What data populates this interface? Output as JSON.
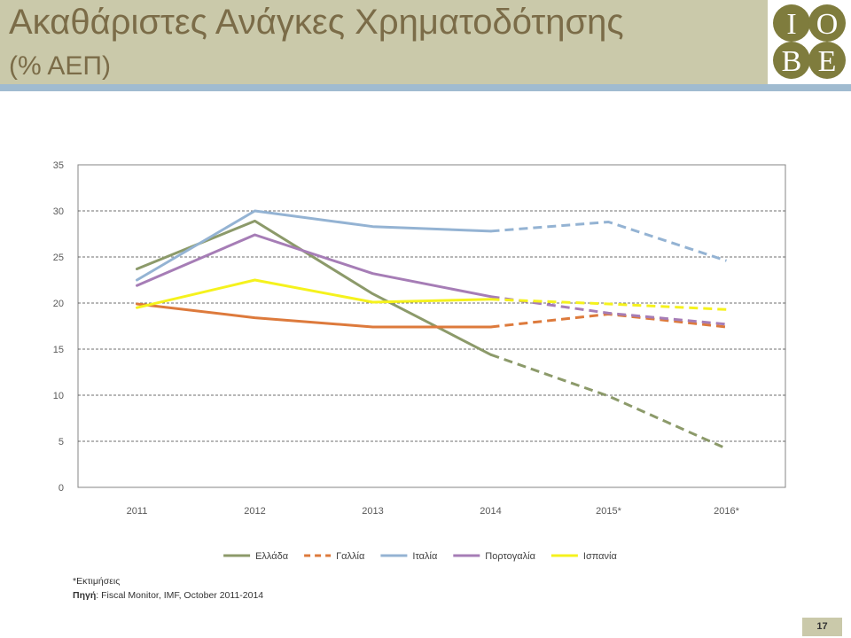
{
  "slide": {
    "title": "Ακαθάριστες Ανάγκες Χρηματοδότησης",
    "subtitle": "(% ΑΕΠ)",
    "page_number": "17"
  },
  "logo": {
    "letters": [
      "I",
      "O",
      "B",
      "E"
    ]
  },
  "theme": {
    "header_bg": "#cac9aa",
    "title_text": "#7b6c48",
    "stripe": "#a0bbd0",
    "logo": "#7f7c3d"
  },
  "chart_data": {
    "type": "line",
    "categories": [
      "2011",
      "2012",
      "2013",
      "2014",
      "2015*",
      "2016*"
    ],
    "ylim": [
      0,
      35
    ],
    "yticks": [
      0,
      5,
      10,
      15,
      20,
      25,
      30,
      35
    ],
    "grid": true,
    "legend": "bottom",
    "dashed_from": "2014",
    "series": [
      {
        "name": "Ελλάδα",
        "color": "#8c9a6a",
        "values": [
          23.7,
          28.9,
          21.0,
          14.4,
          9.9,
          4.2
        ]
      },
      {
        "name": "Γαλλία",
        "color": "#dd7a3c",
        "values": [
          19.9,
          18.4,
          17.4,
          17.4,
          18.8,
          17.4
        ],
        "legend_line": "dashed"
      },
      {
        "name": "Ιταλία",
        "color": "#94b3d3",
        "values": [
          22.5,
          30.0,
          28.3,
          27.8,
          28.8,
          24.6
        ]
      },
      {
        "name": "Πορτογαλία",
        "color": "#a67db6",
        "values": [
          21.9,
          27.4,
          23.2,
          20.7,
          18.9,
          17.7
        ]
      },
      {
        "name": "Ισπανία",
        "color": "#f5f21d",
        "values": [
          19.5,
          22.5,
          20.1,
          20.4,
          19.9,
          19.3
        ]
      }
    ]
  },
  "footnotes": {
    "estimates": "*Εκτιμήσεις",
    "source_label": "Πηγή",
    "source_text": ": Fiscal Monitor, IMF, October 2011-2014"
  }
}
